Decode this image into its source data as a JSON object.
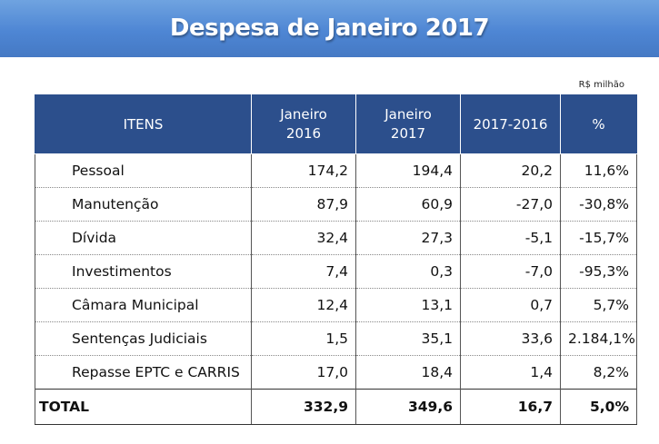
{
  "title": "Despesa de Janeiro 2017",
  "unit_note": "R$ milhão",
  "columns": {
    "items": "ITENS",
    "jan2016_line1": "Janeiro",
    "jan2016_line2": "2016",
    "jan2017_line1": "Janeiro",
    "jan2017_line2": "2017",
    "diff": "2017-2016",
    "pct": "%"
  },
  "rows": [
    {
      "item": "Pessoal",
      "jan2016": "174,2",
      "jan2017": "194,4",
      "diff": "20,2",
      "pct": "11,6%"
    },
    {
      "item": "Manutenção",
      "jan2016": "87,9",
      "jan2017": "60,9",
      "diff": "-27,0",
      "pct": "-30,8%"
    },
    {
      "item": "Dívida",
      "jan2016": "32,4",
      "jan2017": "27,3",
      "diff": "-5,1",
      "pct": "-15,7%"
    },
    {
      "item": "Investimentos",
      "jan2016": "7,4",
      "jan2017": "0,3",
      "diff": "-7,0",
      "pct": "-95,3%"
    },
    {
      "item": "Câmara Municipal",
      "jan2016": "12,4",
      "jan2017": "13,1",
      "diff": "0,7",
      "pct": "5,7%"
    },
    {
      "item": "Sentenças Judiciais",
      "jan2016": "1,5",
      "jan2017": "35,1",
      "diff": "33,6",
      "pct": "2.184,1%"
    },
    {
      "item": "Repasse EPTC e CARRIS",
      "jan2016": "17,0",
      "jan2017": "18,4",
      "diff": "1,4",
      "pct": "8,2%"
    }
  ],
  "total": {
    "item": "TOTAL",
    "jan2016": "332,9",
    "jan2017": "349,6",
    "diff": "16,7",
    "pct": "5,0%"
  }
}
